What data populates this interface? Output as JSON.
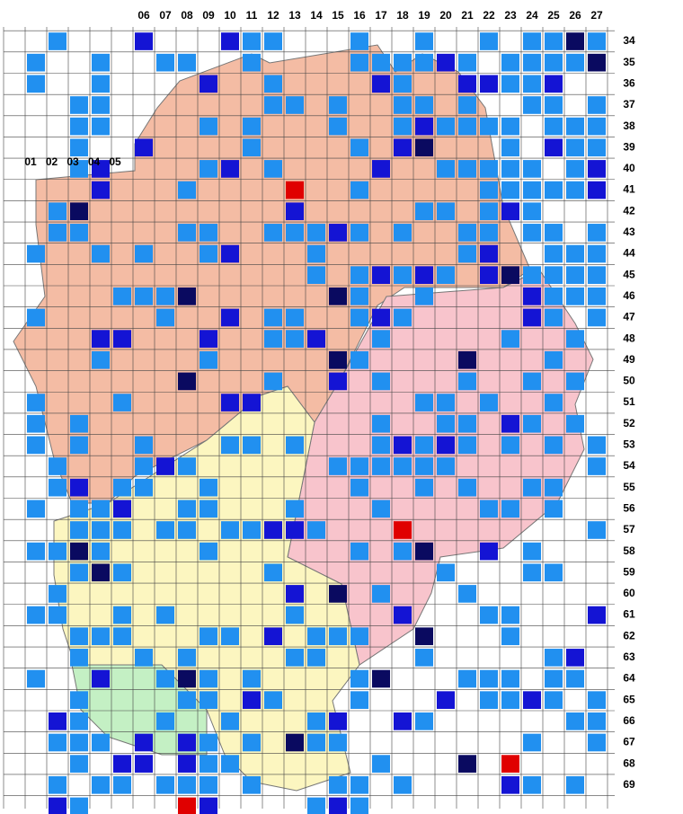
{
  "column_labels_top": [
    "06",
    "07",
    "08",
    "09",
    "10",
    "11",
    "12",
    "13",
    "14",
    "15",
    "16",
    "17",
    "18",
    "19",
    "20",
    "21",
    "22",
    "23",
    "24",
    "25",
    "26",
    "27"
  ],
  "column_labels_left": [
    "01",
    "02",
    "03",
    "04",
    "05"
  ],
  "row_labels": [
    "34",
    "35",
    "36",
    "37",
    "38",
    "39",
    "40",
    "41",
    "42",
    "43",
    "44",
    "45",
    "46",
    "47",
    "48",
    "49",
    "50",
    "51",
    "52",
    "53",
    "54",
    "55",
    "56",
    "57",
    "58",
    "59",
    "60",
    "61",
    "62",
    "63",
    "64",
    "65",
    "66",
    "67",
    "68",
    "69"
  ]
}
